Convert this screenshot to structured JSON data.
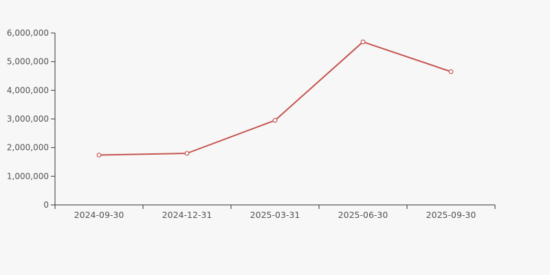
{
  "page": {
    "background_color": "#f7f7f7"
  },
  "chart_data": {
    "type": "line",
    "title": "",
    "xlabel": "",
    "ylabel": "",
    "categories": [
      "2024-09-30",
      "2024-12-31",
      "2025-03-31",
      "2025-06-30",
      "2025-09-30"
    ],
    "series": [
      {
        "name": "value",
        "values": [
          1740000,
          1800000,
          2950000,
          5690000,
          4650000
        ]
      }
    ],
    "ylim": [
      0,
      6000000
    ],
    "ytick_interval": 1000000,
    "ytick_labels": [
      "0",
      "1,000,000",
      "2,000,000",
      "3,000,000",
      "4,000,000",
      "5,000,000",
      "6,000,000"
    ],
    "grid": false,
    "legend": null,
    "marker_style": "hollow-circle",
    "colors": {
      "line": "#c5534f",
      "marker_fill": "#ffffff",
      "axis": "#333333",
      "tick_label": "#525252"
    }
  }
}
